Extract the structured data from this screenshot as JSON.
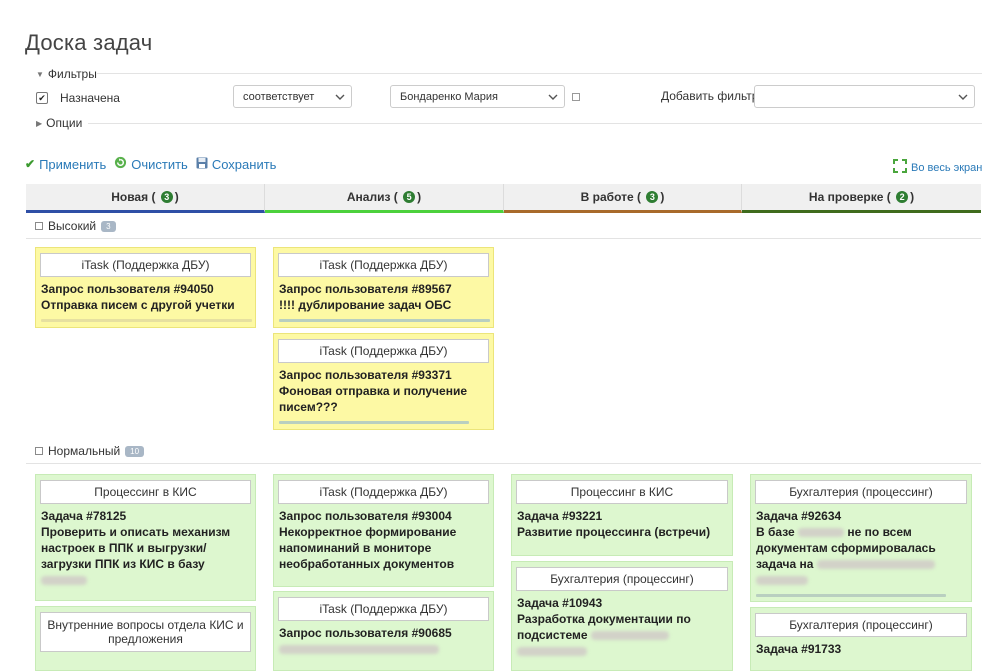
{
  "page": {
    "title": "Доска задач"
  },
  "filters": {
    "legend": "Фильтры",
    "assigned_label": "Назначена",
    "operator_value": "соответствует",
    "user_value": "Бондаренко Мария",
    "add_filter_label": "Добавить фильтр",
    "add_filter_value": ""
  },
  "options": {
    "legend": "Опции"
  },
  "actions": {
    "apply": "Применить",
    "clear": "Очистить",
    "save": "Сохранить",
    "fullscreen": "Во весь экран"
  },
  "columns": [
    {
      "name": "Новая",
      "count": "3",
      "accent": "#2f4fa6"
    },
    {
      "name": "Анализ",
      "count": "5",
      "accent": "#4cd13c"
    },
    {
      "name": "В работе",
      "count": "3",
      "accent": "#a86a2a"
    },
    {
      "name": "На проверке",
      "count": "2",
      "accent": "#3f6b1d"
    }
  ],
  "groups": {
    "high": {
      "label": "Высокий",
      "count": "3"
    },
    "normal": {
      "label": "Нормальный",
      "count": "10"
    }
  },
  "cards": {
    "c1": {
      "project": "iTask (Поддержка ДБУ)",
      "line1": "Запрос пользователя #94050",
      "line2": "Отправка писем с другой учетки",
      "progress": 0
    },
    "c2": {
      "project": "iTask (Поддержка ДБУ)",
      "line1": "Запрос пользователя #89567",
      "line2": "!!!! дублирование задач ОБС",
      "progress": 1.0
    },
    "c3": {
      "project": "iTask (Поддержка ДБУ)",
      "line1": "Запрос пользователя #93371",
      "line2": "Фоновая отправка и получение",
      "line3": "писем???",
      "progress": 0.9
    },
    "c4": {
      "project": "Процессинг в КИС",
      "line1": "Задача #78125",
      "line2": "Проверить и описать механизм",
      "line3": "настроек в ППК и выгрузки/",
      "line4": "загрузки ППК из КИС в базу"
    },
    "c5": {
      "project": "Внутренние вопросы отдела КИС и предложения"
    },
    "c6": {
      "project": "iTask (Поддержка ДБУ)",
      "line1": "Запрос пользователя #93004",
      "line2": "Некорректное формирование",
      "line3": "напоминаний в мониторе",
      "line4": "необработанных документов"
    },
    "c7": {
      "project": "iTask (Поддержка ДБУ)",
      "line1": "Запрос пользователя #90685"
    },
    "c8": {
      "project": "Процессинг в КИС",
      "line1": "Задача #93221",
      "line2": "Развитие процессинга (встречи)"
    },
    "c9": {
      "project": "Бухгалтерия (процессинг)",
      "line1": "Задача #10943",
      "line2": "Разработка документации по",
      "line3": "подсистеме"
    },
    "c10": {
      "project": "Бухгалтерия (процессинг)",
      "line1": "Задача #92634",
      "line2a": "В базе",
      "line2b": "не по всем",
      "line3": "документам сформировалась",
      "line4": "задача на",
      "progress": 0.9
    },
    "c11": {
      "project": "Бухгалтерия (процессинг)",
      "line1": "Задача #91733"
    }
  }
}
